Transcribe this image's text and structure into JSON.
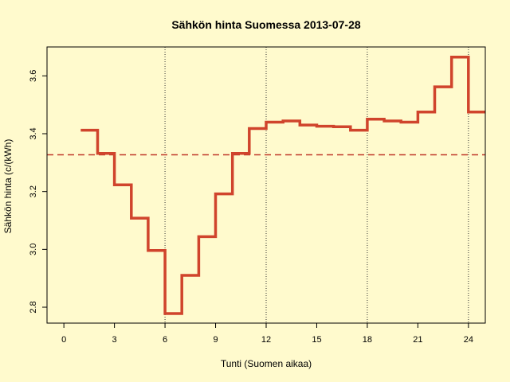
{
  "chart_data": {
    "type": "line",
    "style": "step",
    "title": "Sähkön hinta Suomessa 2013-07-28",
    "xlabel": "Tunti (Suomen aikaa)",
    "ylabel": "Sähkön hinta (c/(kWh)",
    "xlim": [
      -1,
      25
    ],
    "ylim": [
      2.745,
      3.7
    ],
    "x_ticks": [
      "0",
      "3",
      "6",
      "9",
      "12",
      "15",
      "18",
      "21",
      "24"
    ],
    "y_ticks": [
      "2.8",
      "3.0",
      "3.2",
      "3.4",
      "3.6"
    ],
    "vertical_gridlines_at": [
      6,
      12,
      18,
      24
    ],
    "colors": {
      "series": "#D0442C",
      "mean_line": "#C0392B",
      "background": "#FFFACD"
    },
    "series": [
      {
        "hours": [
          1,
          2,
          3,
          4,
          5,
          6,
          7,
          8,
          9,
          10,
          11,
          12,
          13,
          14,
          15,
          16,
          17,
          18,
          19,
          20,
          21,
          22,
          23,
          24
        ],
        "values": [
          3.412,
          3.332,
          3.223,
          3.108,
          2.996,
          2.778,
          2.91,
          3.044,
          3.192,
          3.332,
          3.418,
          3.44,
          3.444,
          3.43,
          3.426,
          3.424,
          3.412,
          3.45,
          3.444,
          3.44,
          3.475,
          3.562,
          3.665,
          3.475
        ]
      }
    ],
    "reference_lines": [
      {
        "y": 3.327,
        "style": "dashed"
      }
    ]
  }
}
